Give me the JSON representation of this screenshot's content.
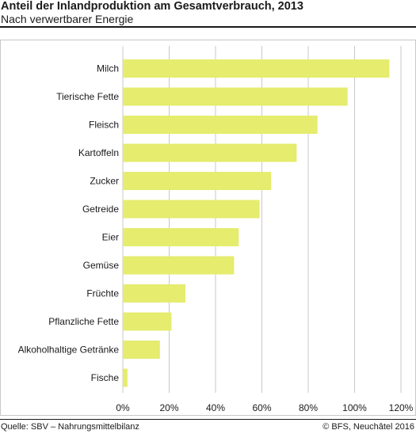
{
  "chart_data": {
    "type": "bar",
    "orientation": "horizontal",
    "title": "Anteil der Inlandproduktion am Gesamtverbrauch, 2013",
    "subtitle": "Nach verwertbarer Energie",
    "categories": [
      "Milch",
      "Tierische Fette",
      "Fleisch",
      "Kartoffeln",
      "Zucker",
      "Getreide",
      "Eier",
      "Gemüse",
      "Früchte",
      "Pflanzliche Fette",
      "Alkoholhaltige Getränke",
      "Fische"
    ],
    "values": [
      115,
      97,
      84,
      75,
      64,
      59,
      50,
      48,
      27,
      21,
      16,
      2
    ],
    "xlim": [
      0,
      120
    ],
    "xticks": [
      0,
      20,
      40,
      60,
      80,
      100,
      120
    ],
    "xtick_labels": [
      "0%",
      "20%",
      "40%",
      "60%",
      "80%",
      "100%",
      "120%"
    ],
    "grid": "vertical",
    "bar_color": "#e5ec6e",
    "grid_color": "#c8c8c8"
  },
  "footer": {
    "source": "Quelle: SBV – Nahrungsmittelbilanz",
    "credit": "© BFS, Neuchâtel 2016"
  }
}
